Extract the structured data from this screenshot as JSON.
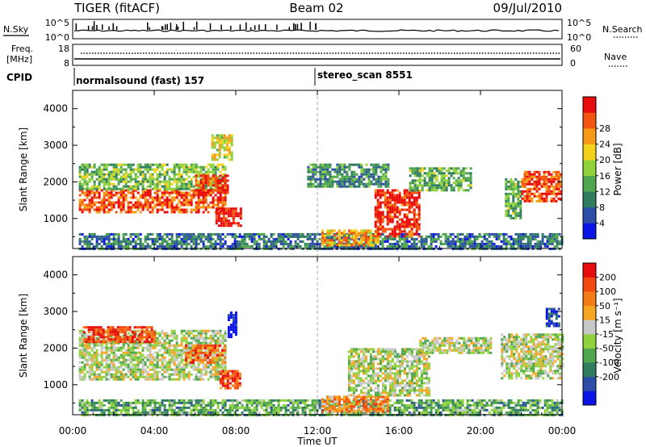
{
  "header": {
    "radar": "TIGER (fitACF)",
    "beam": "Beam 02",
    "date": "09/Jul/2010"
  },
  "nsky_panel": {
    "left_label": "N.Sky",
    "left_ticks": [
      "10^5",
      "10^0"
    ],
    "right_ticks": [
      "10^5",
      "10^0"
    ],
    "right_label": "N.Search",
    "right_legend_line": "dotted"
  },
  "freq_panel": {
    "left_label_top": "Freq.",
    "left_label_unit": "[MHz]",
    "left_ticks": [
      "18",
      "8"
    ],
    "right_ticks": [
      "60",
      "0"
    ],
    "right_label": "Nave",
    "right_legend_line": "dotted"
  },
  "cpid_panel": {
    "label": "CPID",
    "segments": [
      {
        "name": "normalsound (fast) 157",
        "start_hour": 0,
        "end_hour": 12
      },
      {
        "name": "stereo_scan 8551",
        "start_hour": 12,
        "end_hour": 24
      }
    ]
  },
  "x_axis": {
    "label": "Time UT",
    "range_hours": [
      0,
      24
    ],
    "tick_labels": [
      "00:00",
      "04:00",
      "08:00",
      "12:00",
      "16:00",
      "20:00",
      "00:00"
    ]
  },
  "chart_data": [
    {
      "type": "heatmap",
      "panel": "power",
      "ylabel": "Slant Range [km]",
      "ylim": [
        180,
        4500
      ],
      "y_ticks": [
        1000,
        2000,
        3000,
        4000
      ],
      "xlim_hours": [
        0,
        24
      ],
      "colorbar": {
        "label": "Power [dB]",
        "range": [
          0,
          32
        ],
        "tick_labels": [
          "4",
          "8",
          "12",
          "16",
          "20",
          "24",
          "28"
        ],
        "colors": [
          "#0a14e6",
          "#2d4ea6",
          "#2f7d5e",
          "#4fa64d",
          "#8fd23c",
          "#f2d21a",
          "#f59b17",
          "#f2550f",
          "#e80c0c"
        ]
      },
      "regions": [
        {
          "t": [
            0.3,
            7.5
          ],
          "r": [
            1150,
            1800
          ],
          "level": 0.85
        },
        {
          "t": [
            0.3,
            7.5
          ],
          "r": [
            1800,
            2500
          ],
          "level": 0.45
        },
        {
          "t": [
            6.0,
            7.6
          ],
          "r": [
            1700,
            2200
          ],
          "level": 0.9
        },
        {
          "t": [
            7.0,
            8.2
          ],
          "r": [
            800,
            1300
          ],
          "level": 0.95
        },
        {
          "t": [
            6.8,
            7.8
          ],
          "r": [
            2600,
            3300
          ],
          "level": 0.6
        },
        {
          "t": [
            0.3,
            24.0
          ],
          "r": [
            200,
            600
          ],
          "level": 0.25
        },
        {
          "t": [
            12.2,
            15.0
          ],
          "r": [
            300,
            700
          ],
          "level": 0.7
        },
        {
          "t": [
            14.8,
            17.0
          ],
          "r": [
            500,
            1800
          ],
          "level": 0.92
        },
        {
          "t": [
            11.5,
            15.5
          ],
          "r": [
            1900,
            2500
          ],
          "level": 0.3
        },
        {
          "t": [
            16.5,
            19.5
          ],
          "r": [
            1800,
            2400
          ],
          "level": 0.4
        },
        {
          "t": [
            21.2,
            22.0
          ],
          "r": [
            1000,
            2100
          ],
          "level": 0.4
        },
        {
          "t": [
            22.0,
            24.0
          ],
          "r": [
            1500,
            2300
          ],
          "level": 0.85
        }
      ]
    },
    {
      "type": "heatmap",
      "panel": "velocity",
      "ylabel": "Slant Range [km]",
      "ylim": [
        180,
        4500
      ],
      "y_ticks": [
        1000,
        2000,
        3000,
        4000
      ],
      "xlim_hours": [
        0,
        24
      ],
      "colorbar": {
        "label": "Velocity [m s⁻¹]",
        "range": [
          -250,
          250
        ],
        "tick_labels": [
          "200",
          "100",
          "50",
          "15",
          "-15",
          "-50",
          "-100",
          "-200"
        ],
        "colors": [
          "#0a14e6",
          "#2d4ea6",
          "#2f7d5e",
          "#4fa64d",
          "#8fd23c",
          "#c8c8c8",
          "#f5a623",
          "#f57b17",
          "#f24a0f",
          "#e80c0c"
        ]
      },
      "regions": [
        {
          "t": [
            0.3,
            7.5
          ],
          "r": [
            1150,
            2500
          ],
          "level": 0.5
        },
        {
          "t": [
            5.5,
            7.5
          ],
          "r": [
            1600,
            2100
          ],
          "level": 0.75
        },
        {
          "t": [
            7.2,
            8.2
          ],
          "r": [
            900,
            1400
          ],
          "level": 0.85
        },
        {
          "t": [
            7.6,
            8.0
          ],
          "r": [
            2300,
            3000
          ],
          "level": 0.05
        },
        {
          "t": [
            0.5,
            4.0
          ],
          "r": [
            2200,
            2600
          ],
          "level": 0.9
        },
        {
          "t": [
            0.3,
            24.0
          ],
          "r": [
            200,
            600
          ],
          "level": 0.35
        },
        {
          "t": [
            12.2,
            15.5
          ],
          "r": [
            300,
            700
          ],
          "level": 0.72
        },
        {
          "t": [
            13.5,
            17.5
          ],
          "r": [
            700,
            2000
          ],
          "level": 0.5
        },
        {
          "t": [
            17.0,
            20.5
          ],
          "r": [
            1900,
            2300
          ],
          "level": 0.5
        },
        {
          "t": [
            21.0,
            24.0
          ],
          "r": [
            1200,
            2400
          ],
          "level": 0.5
        },
        {
          "t": [
            23.2,
            23.8
          ],
          "r": [
            2600,
            3100
          ],
          "level": 0.1
        }
      ]
    }
  ]
}
